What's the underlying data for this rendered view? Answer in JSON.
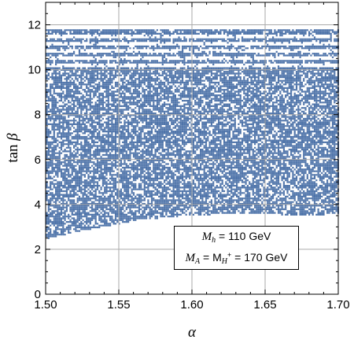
{
  "chart_data": {
    "type": "scatter",
    "title": "",
    "xlabel": "α",
    "ylabel": "tan β",
    "xlim": [
      1.5,
      1.7
    ],
    "ylim": [
      0,
      13
    ],
    "xticks": [
      "1.50",
      "1.55",
      "1.60",
      "1.65",
      "1.70"
    ],
    "yticks": [
      "0",
      "2",
      "4",
      "6",
      "8",
      "10",
      "12"
    ],
    "grid": true,
    "point_color": "#4f74aa",
    "series": [
      {
        "region": "allowed points",
        "lower_boundary": {
          "x": [
            1.5,
            1.52,
            1.54,
            1.56,
            1.58,
            1.6,
            1.62,
            1.64,
            1.66,
            1.68,
            1.7
          ],
          "y": [
            2.5,
            2.8,
            3.05,
            3.3,
            3.45,
            3.55,
            3.6,
            3.6,
            3.58,
            3.55,
            3.6
          ]
        },
        "upper_limit": 11.8,
        "dense_below": 10.0
      }
    ],
    "annotations": [
      {
        "lhs": "M",
        "lhs_sub": "h",
        "rhs": "= 110 GeV"
      },
      {
        "lhs": "M",
        "lhs_sub": "A",
        "mid": "= M",
        "mid_sub": "H",
        "mid_sup": "+",
        "rhs": "= 170 GeV"
      }
    ]
  }
}
